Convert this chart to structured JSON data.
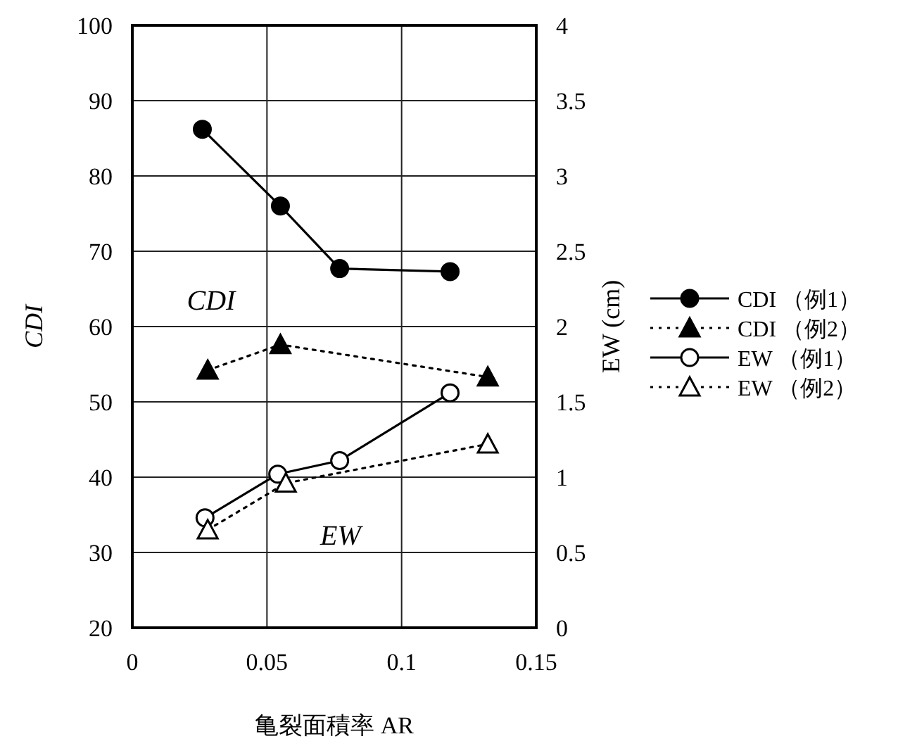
{
  "chart_data": {
    "type": "line",
    "xlabel": "亀裂面積率 AR",
    "ylabel": "CDI",
    "y2label": "EW (cm)",
    "xlim": [
      0,
      0.15
    ],
    "xticks": [
      0,
      0.05,
      0.1,
      0.15
    ],
    "ylim": [
      20,
      100
    ],
    "yticks": [
      20,
      30,
      40,
      50,
      60,
      70,
      80,
      90,
      100
    ],
    "y2lim": [
      0,
      4
    ],
    "y2ticks": [
      0,
      0.5,
      1,
      1.5,
      2,
      2.5,
      3,
      3.5,
      4
    ],
    "grid": true,
    "legend": "right",
    "annotations": [
      "CDI",
      "EW"
    ],
    "series": [
      {
        "name": "CDI （例1）",
        "color": "#000000",
        "marker": "circle",
        "line_style": "solid",
        "x": [
          0.026,
          0.055,
          0.077,
          0.118
        ],
        "values": [
          86.2,
          76,
          67.7,
          67.3
        ]
      },
      {
        "name": "CDI （例2）",
        "color": "#000000",
        "marker": "triangle",
        "line_style": "dotted",
        "x": [
          0.028,
          0.055,
          0.132
        ],
        "values": [
          54.2,
          57.6,
          53.3
        ]
      },
      {
        "name": "EW （例1）",
        "color": "#000000",
        "marker": "circle",
        "line_style": "solid",
        "axis": "y2",
        "x": [
          0.027,
          0.054,
          0.077,
          0.118
        ],
        "values": [
          0.73,
          1.02,
          1.11,
          1.56
        ]
      },
      {
        "name": "EW （例2）",
        "color": "#000000",
        "marker": "triangle",
        "line_style": "dotted",
        "axis": "y2",
        "x": [
          0.028,
          0.057,
          0.132
        ],
        "values": [
          0.65,
          0.96,
          1.22
        ]
      }
    ]
  }
}
